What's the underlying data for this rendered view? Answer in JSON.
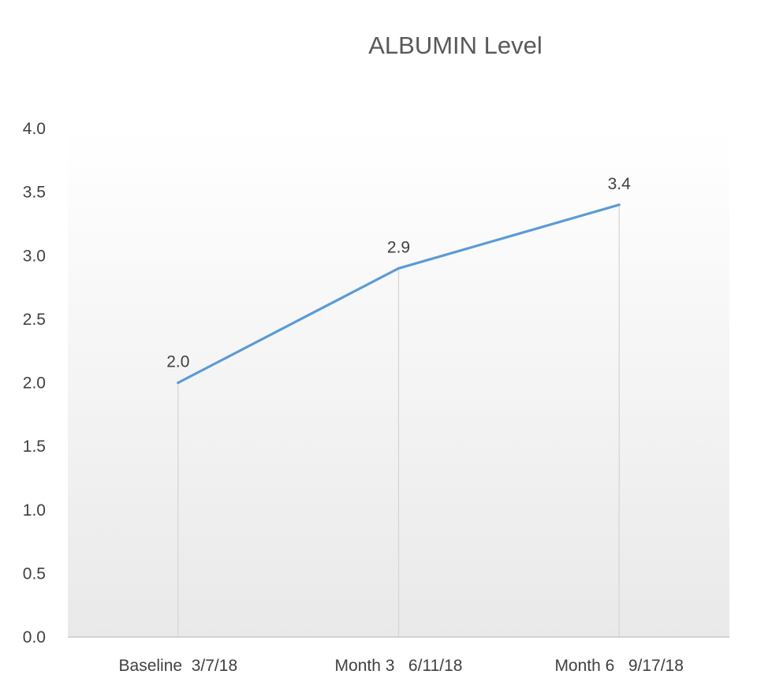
{
  "chart_data": {
    "type": "line",
    "title": "ALBUMIN Level",
    "xlabel": "",
    "ylabel": "",
    "categories": [
      "Baseline  3/7/18",
      "Month 3   6/11/18",
      "Month 6   9/17/18"
    ],
    "series": [
      {
        "values": [
          2.0,
          2.9,
          3.4
        ],
        "color": "#5b9bd5"
      }
    ],
    "data_labels": [
      "2.0",
      "2.9",
      "3.4"
    ],
    "ylim": [
      0,
      4
    ],
    "yticks": [
      "0.0",
      "0.5",
      "1.0",
      "1.5",
      "2.0",
      "2.5",
      "3.0",
      "3.5",
      "4.0"
    ],
    "grid": false,
    "drop_lines": true,
    "legend": "none"
  }
}
